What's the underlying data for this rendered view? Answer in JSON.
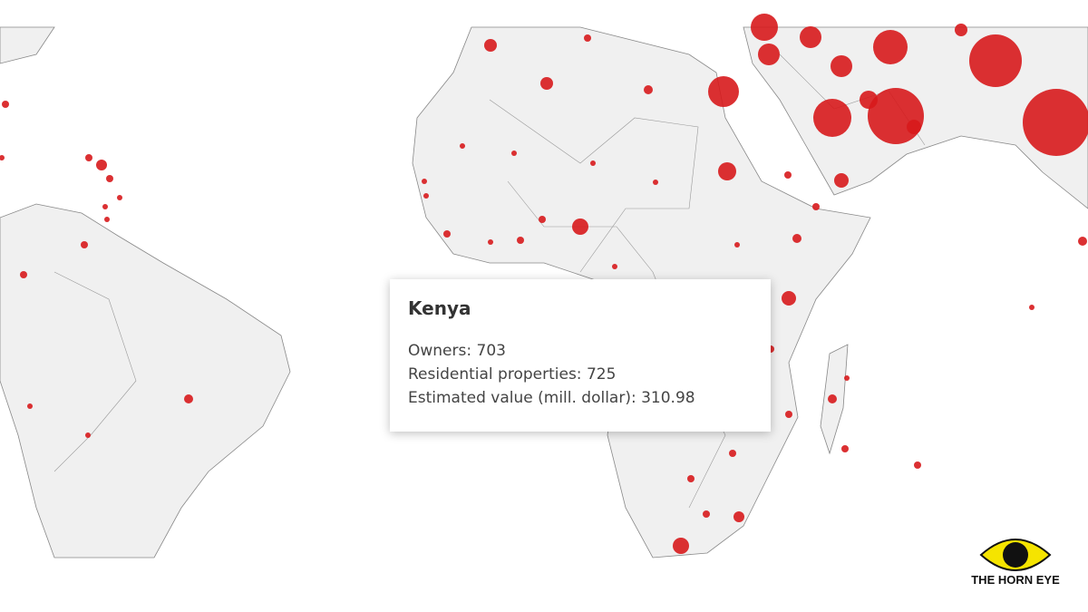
{
  "tooltip": {
    "title": "Kenya",
    "rows": [
      {
        "label": "Owners:",
        "value": 703
      },
      {
        "label": "Residential properties:",
        "value": 725
      },
      {
        "label": "Estimated value (mill. dollar):",
        "value": 310.98
      }
    ]
  },
  "logo": {
    "text": "THE HORN EYE"
  }
}
